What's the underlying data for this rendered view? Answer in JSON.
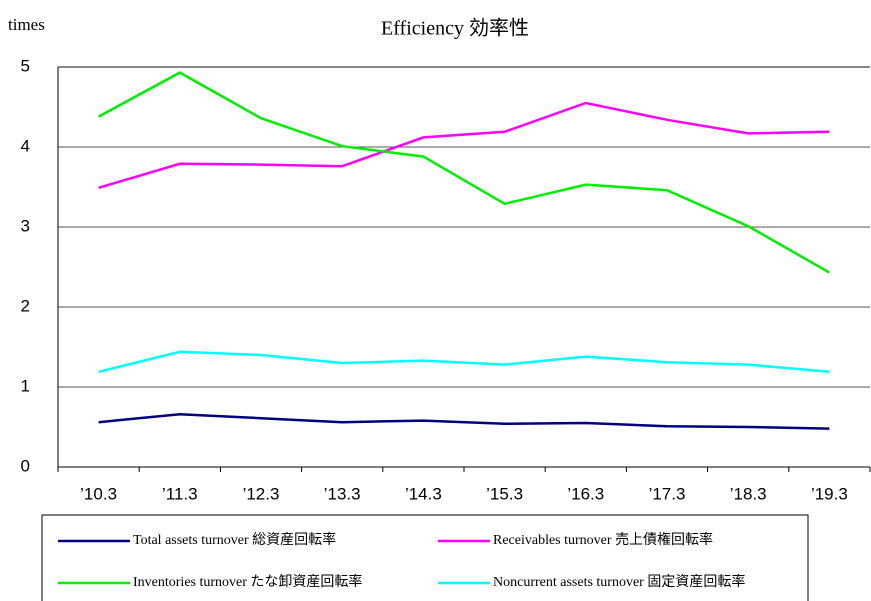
{
  "chart_data": {
    "type": "line",
    "title": "Efficiency  効率性",
    "y_label": "times",
    "categories": [
      "’10.3",
      "’11.3",
      "’12.3",
      "’13.3",
      "’14.3",
      "’15.3",
      "’16.3",
      "’17.3",
      "’18.3",
      "’19.3"
    ],
    "series": [
      {
        "name": "Total assets turnover 総資産回転率",
        "color": "#000080",
        "values": [
          0.56,
          0.66,
          0.61,
          0.56,
          0.58,
          0.54,
          0.55,
          0.51,
          0.5,
          0.48
        ]
      },
      {
        "name": "Receivables turnover 売上債権回転率",
        "color": "#ff00ff",
        "values": [
          3.49,
          3.79,
          3.78,
          3.76,
          4.12,
          4.19,
          4.55,
          4.34,
          4.17,
          4.19
        ]
      },
      {
        "name": "Inventories turnover たな卸資産回転率",
        "color": "#00ee00",
        "values": [
          4.38,
          4.93,
          4.36,
          4.01,
          3.88,
          3.29,
          3.53,
          3.46,
          3.01,
          2.43
        ]
      },
      {
        "name": "Noncurrent assets turnover 固定資産回転率",
        "color": "#00ffff",
        "values": [
          1.19,
          1.44,
          1.4,
          1.3,
          1.33,
          1.28,
          1.38,
          1.31,
          1.28,
          1.19
        ]
      }
    ],
    "ylim": [
      0,
      5
    ],
    "yticks": [
      0,
      1,
      2,
      3,
      4,
      5
    ],
    "grid": true,
    "legend": "bottom"
  }
}
